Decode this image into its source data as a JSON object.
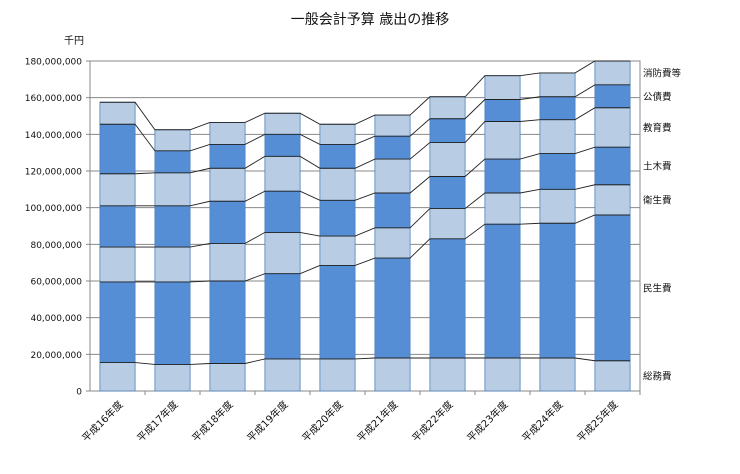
{
  "chart_data": {
    "type": "bar",
    "stacked": true,
    "title": "一般会計予算 歳出の推移",
    "unit": "千円",
    "categories": [
      "平成16年度",
      "平成17年度",
      "平成18年度",
      "平成19年度",
      "平成20年度",
      "平成21年度",
      "平成22年度",
      "平成23年度",
      "平成24年度",
      "平成25年度"
    ],
    "series": [
      {
        "name": "総務費",
        "color": "#b8cce4",
        "values": [
          15500000,
          14500000,
          15000000,
          17500000,
          17500000,
          18000000,
          18000000,
          18000000,
          18000000,
          16500000
        ]
      },
      {
        "name": "民生費",
        "color": "#558ed5",
        "values": [
          44000000,
          45000000,
          45000000,
          46500000,
          51000000,
          54500000,
          65000000,
          73000000,
          73500000,
          79500000
        ]
      },
      {
        "name": "衛生費",
        "color": "#b8cce4",
        "values": [
          19000000,
          19000000,
          20500000,
          22500000,
          16000000,
          16500000,
          16500000,
          17000000,
          18500000,
          16500000
        ]
      },
      {
        "name": "土木費",
        "color": "#558ed5",
        "values": [
          22500000,
          22500000,
          23000000,
          22500000,
          19500000,
          19000000,
          17500000,
          18500000,
          19500000,
          20500000
        ]
      },
      {
        "name": "教育費",
        "color": "#b8cce4",
        "values": [
          17500000,
          18000000,
          18000000,
          19000000,
          17500000,
          18500000,
          18500000,
          20500000,
          18500000,
          21500000
        ]
      },
      {
        "name": "公債費",
        "color": "#558ed5",
        "values": [
          27000000,
          12000000,
          13000000,
          12000000,
          13000000,
          12500000,
          13000000,
          12000000,
          12500000,
          12500000
        ]
      },
      {
        "name": "消防費等",
        "color": "#b8cce4",
        "values": [
          12000000,
          11500000,
          12000000,
          11500000,
          11000000,
          11500000,
          12000000,
          13000000,
          13000000,
          13000000
        ]
      }
    ],
    "ylim": [
      0,
      180000000
    ],
    "yticks": [
      "0",
      "20,000,000",
      "40,000,000",
      "60,000,000",
      "80,000,000",
      "100,000,000",
      "120,000,000",
      "140,000,000",
      "160,000,000",
      "180,000,000"
    ],
    "grid": true,
    "legend": "right",
    "series_lines": true
  }
}
